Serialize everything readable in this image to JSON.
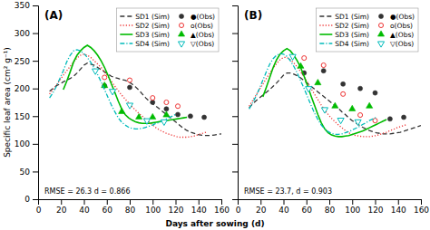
{
  "chart_data": [
    {
      "type": "line",
      "xlim": [
        0,
        160
      ],
      "ylim": [
        0,
        350
      ],
      "xticks": [
        0,
        20,
        40,
        60,
        80,
        100,
        120,
        140,
        160
      ],
      "yticks": [
        0,
        50,
        100,
        150,
        200,
        250,
        300,
        350
      ],
      "ylabel": "Specific leaf area (cm² g⁻¹)",
      "xlabel": "Days after sowing (d)",
      "annotations": [
        "(A)",
        "RMSE = 26.3   d = 0.866"
      ],
      "legend": "upper right",
      "series": [
        {
          "name": "SD1 (Sim)",
          "type": "line",
          "color": "#333333",
          "line_style": "dashed",
          "x": [
            10,
            13,
            16,
            19,
            22,
            25,
            28,
            31,
            34,
            37,
            40,
            43,
            46,
            49,
            52,
            55,
            58,
            61,
            64,
            67,
            70,
            73,
            76,
            79,
            82,
            85,
            88,
            91,
            94,
            97,
            100,
            103,
            106,
            109,
            112,
            115,
            118,
            121,
            124,
            127,
            130,
            133,
            136,
            139,
            142,
            145,
            148,
            151,
            154,
            157,
            160
          ],
          "values": [
            195,
            200,
            205,
            208,
            212,
            215,
            218,
            222,
            228,
            235,
            242,
            246,
            244,
            242,
            238,
            234,
            230,
            226,
            222,
            220,
            218,
            216,
            215,
            212,
            208,
            203,
            197,
            190,
            183,
            177,
            172,
            168,
            163,
            158,
            153,
            148,
            143,
            138,
            133,
            128,
            124,
            121,
            119,
            117,
            116,
            115,
            115,
            115,
            116,
            117,
            118
          ]
        },
        {
          "name": "●(Obs)",
          "type": "scatter",
          "color": "#333333",
          "marker": "circle",
          "x": [
            58,
            80,
            100,
            112,
            122,
            133,
            145
          ],
          "values": [
            205,
            202,
            175,
            163,
            153,
            150,
            148
          ]
        },
        {
          "name": "SD2 (Sim)",
          "type": "line",
          "color": "#ee3333",
          "line_style": "dotted",
          "x": [
            10,
            13,
            16,
            19,
            22,
            25,
            28,
            31,
            34,
            37,
            40,
            43,
            46,
            49,
            52,
            55,
            58,
            61,
            64,
            67,
            70,
            73,
            76,
            79,
            82,
            85,
            88,
            91,
            94,
            97,
            100,
            103,
            106,
            109,
            112,
            115,
            118,
            121,
            124,
            127,
            130,
            133,
            136,
            139,
            142,
            145,
            148
          ],
          "values": [
            190,
            198,
            206,
            215,
            224,
            232,
            240,
            248,
            255,
            260,
            262,
            260,
            256,
            250,
            244,
            238,
            230,
            222,
            213,
            204,
            196,
            188,
            181,
            174,
            167,
            161,
            155,
            150,
            144,
            139,
            134,
            129,
            125,
            122,
            119,
            117,
            115,
            113,
            112,
            112,
            112,
            113,
            114,
            116,
            118,
            120,
            122
          ]
        },
        {
          "name": "o(Obs)",
          "type": "scatter",
          "color": "#ee3333",
          "marker": "circle-open",
          "x": [
            58,
            80,
            100,
            112,
            122
          ],
          "values": [
            220,
            215,
            183,
            175,
            168
          ]
        },
        {
          "name": "SD3 (Sim)",
          "type": "line",
          "color": "#00bb00",
          "line_style": "solid",
          "x": [
            22,
            25,
            28,
            31,
            34,
            37,
            40,
            43,
            46,
            49,
            52,
            55,
            58,
            61,
            64,
            67,
            70,
            73,
            76,
            79,
            82,
            85,
            88,
            91,
            94,
            97,
            100,
            103,
            106,
            109,
            112,
            115,
            118,
            121,
            124,
            127,
            130
          ],
          "values": [
            198,
            213,
            230,
            248,
            260,
            268,
            274,
            278,
            274,
            268,
            260,
            250,
            238,
            224,
            208,
            193,
            177,
            163,
            153,
            147,
            143,
            140,
            138,
            137,
            137,
            137,
            138,
            139,
            140,
            141,
            142,
            143,
            144,
            145,
            146,
            147,
            148
          ]
        },
        {
          "name": "▲(Obs)",
          "type": "scatter",
          "color": "#00bb00",
          "marker": "triangle-up",
          "x": [
            58,
            73,
            88,
            100,
            112
          ],
          "values": [
            205,
            158,
            148,
            148,
            152
          ]
        },
        {
          "name": "SD4 (Sim)",
          "type": "line",
          "color": "#00bbbb",
          "line_style": "dashdot",
          "x": [
            10,
            13,
            16,
            19,
            22,
            25,
            28,
            31,
            34,
            37,
            40,
            43,
            46,
            49,
            52,
            55,
            58,
            61,
            64,
            67,
            70,
            73,
            76,
            79,
            82,
            85,
            88,
            91,
            94,
            97,
            100,
            103,
            106,
            109,
            112,
            115,
            118,
            121
          ],
          "values": [
            183,
            192,
            204,
            218,
            232,
            248,
            260,
            268,
            270,
            268,
            263,
            256,
            247,
            237,
            225,
            212,
            198,
            184,
            170,
            158,
            147,
            139,
            134,
            130,
            128,
            127,
            127,
            128,
            130,
            132,
            134,
            137,
            139,
            142,
            145,
            148,
            151,
            154
          ]
        },
        {
          "name": "▽(Obs)",
          "type": "scatter",
          "color": "#00bbbb",
          "marker": "triangle-down-open",
          "x": [
            50,
            65,
            80,
            95,
            110
          ],
          "values": [
            232,
            195,
            170,
            142,
            140
          ]
        }
      ]
    },
    {
      "type": "line",
      "xlim": [
        0,
        160
      ],
      "ylim": [
        0,
        350
      ],
      "xticks": [
        0,
        20,
        40,
        60,
        80,
        100,
        120,
        140,
        160
      ],
      "yticks": [
        0,
        50,
        100,
        150,
        200,
        250,
        300,
        350
      ],
      "tick_labels": "x",
      "annotations": [
        "(B)",
        "RMSE = 23.7,  d = 0.903"
      ],
      "legend": "upper right",
      "series": [
        {
          "name": "SD1 (Sim)",
          "type": "line",
          "color": "#333333",
          "line_style": "dashed",
          "x": [
            10,
            13,
            16,
            19,
            22,
            25,
            28,
            31,
            34,
            37,
            40,
            43,
            46,
            49,
            52,
            55,
            58,
            61,
            64,
            67,
            70,
            73,
            76,
            79,
            82,
            85,
            88,
            91,
            94,
            97,
            100,
            103,
            106,
            109,
            112,
            115,
            118,
            121,
            124,
            127,
            130,
            133,
            136,
            139,
            142,
            145,
            148,
            151,
            154,
            157,
            160
          ],
          "values": [
            165,
            172,
            178,
            183,
            188,
            193,
            198,
            204,
            210,
            217,
            224,
            228,
            228,
            226,
            223,
            219,
            214,
            209,
            204,
            199,
            194,
            189,
            184,
            179,
            174,
            169,
            164,
            158,
            153,
            147,
            142,
            138,
            134,
            130,
            127,
            124,
            122,
            120,
            119,
            118,
            118,
            118,
            119,
            120,
            121,
            123,
            125,
            127,
            129,
            131,
            133
          ]
        },
        {
          "name": "●(Obs)",
          "type": "scatter",
          "color": "#333333",
          "marker": "circle",
          "x": [
            58,
            75,
            92,
            107,
            120,
            133,
            145
          ],
          "values": [
            228,
            232,
            208,
            200,
            192,
            145,
            148
          ]
        },
        {
          "name": "SD2 (Sim)",
          "type": "line",
          "color": "#ee3333",
          "line_style": "dotted",
          "x": [
            10,
            13,
            16,
            19,
            22,
            25,
            28,
            31,
            34,
            37,
            40,
            43,
            46,
            49,
            52,
            55,
            58,
            61,
            64,
            67,
            70,
            73,
            76,
            79,
            82,
            85,
            88,
            91,
            94,
            97,
            100,
            103,
            106,
            109,
            112,
            115,
            118,
            121,
            124,
            127,
            130,
            133,
            136,
            139,
            142,
            145,
            148
          ],
          "values": [
            168,
            178,
            188,
            198,
            208,
            218,
            228,
            237,
            245,
            252,
            256,
            256,
            252,
            246,
            239,
            230,
            221,
            211,
            200,
            190,
            180,
            170,
            161,
            153,
            146,
            140,
            134,
            129,
            124,
            120,
            117,
            115,
            114,
            113,
            113,
            113,
            114,
            115,
            117,
            119,
            121,
            124,
            126,
            129,
            131,
            133,
            135
          ]
        },
        {
          "name": "o(Obs)",
          "type": "scatter",
          "color": "#ee3333",
          "marker": "circle-open",
          "x": [
            58,
            75,
            92,
            107,
            120
          ],
          "values": [
            255,
            242,
            190,
            152,
            142
          ]
        },
        {
          "name": "SD3 (Sim)",
          "type": "line",
          "color": "#00bb00",
          "line_style": "solid",
          "x": [
            22,
            25,
            28,
            31,
            34,
            37,
            40,
            43,
            46,
            49,
            52,
            55,
            58,
            61,
            64,
            67,
            70,
            73,
            76,
            79,
            82,
            85,
            88,
            91,
            94,
            97,
            100,
            103,
            106,
            109,
            112,
            115,
            118,
            121,
            124,
            127,
            130
          ],
          "values": [
            185,
            202,
            220,
            238,
            252,
            262,
            268,
            272,
            268,
            260,
            250,
            238,
            222,
            205,
            187,
            170,
            153,
            138,
            127,
            120,
            116,
            114,
            113,
            113,
            114,
            115,
            117,
            119,
            121,
            123,
            126,
            129,
            132,
            135,
            138,
            141,
            144
          ]
        },
        {
          "name": "▲(Obs)",
          "type": "scatter",
          "color": "#00bb00",
          "marker": "triangle-up",
          "x": [
            55,
            70,
            85,
            100,
            115
          ],
          "values": [
            240,
            210,
            168,
            163,
            168
          ]
        },
        {
          "name": "SD4 (Sim)",
          "type": "line",
          "color": "#00bbbb",
          "line_style": "dashdot",
          "x": [
            10,
            13,
            16,
            19,
            22,
            25,
            28,
            31,
            34,
            37,
            40,
            43,
            46,
            49,
            52,
            55,
            58,
            61,
            64,
            67,
            70,
            73,
            76,
            79,
            82,
            85,
            88,
            91,
            94,
            97,
            100,
            103,
            106,
            109,
            112,
            115,
            118,
            121
          ],
          "values": [
            163,
            174,
            186,
            200,
            215,
            230,
            244,
            254,
            260,
            263,
            262,
            258,
            250,
            240,
            228,
            214,
            200,
            185,
            170,
            156,
            144,
            134,
            127,
            122,
            119,
            117,
            117,
            118,
            120,
            122,
            125,
            128,
            131,
            135,
            138,
            142,
            145,
            148
          ]
        },
        {
          "name": "▽(Obs)",
          "type": "scatter",
          "color": "#00bbbb",
          "marker": "triangle-down-open",
          "x": [
            48,
            62,
            76,
            90,
            105
          ],
          "values": [
            258,
            200,
            162,
            143,
            140
          ]
        }
      ]
    }
  ]
}
